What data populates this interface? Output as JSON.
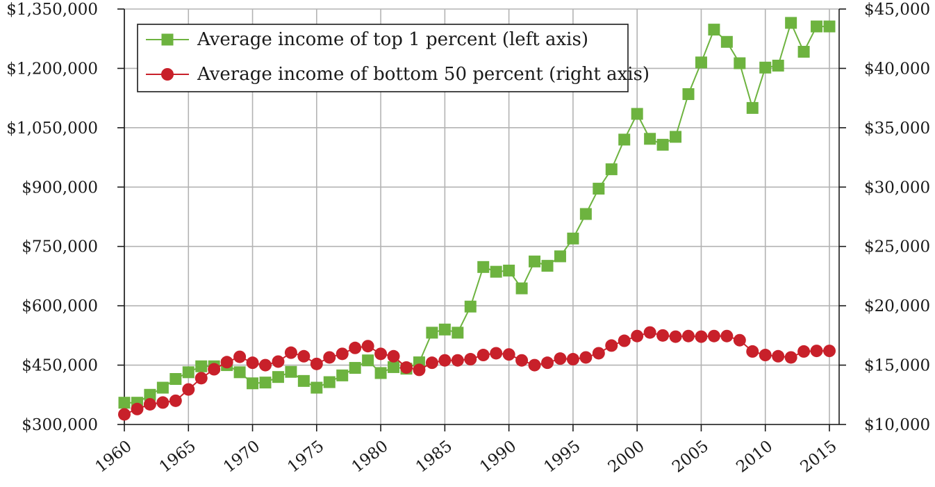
{
  "chart_data": {
    "type": "line",
    "title": "",
    "xlabel": "",
    "ylabel": "",
    "xlim": [
      1960,
      2015
    ],
    "x_ticks": [
      1960,
      1965,
      1970,
      1975,
      1980,
      1985,
      1990,
      1995,
      2000,
      2005,
      2010,
      2015
    ],
    "x_tick_labels": [
      "1960",
      "1965",
      "1970",
      "1975",
      "1980",
      "1985",
      "1990",
      "1995",
      "2000",
      "2005",
      "2010",
      "2015"
    ],
    "y_left": {
      "range": [
        300000,
        1350000
      ],
      "ticks": [
        300000,
        450000,
        600000,
        750000,
        900000,
        1050000,
        1200000,
        1350000
      ],
      "tick_labels": [
        "$300,000",
        "$450,000",
        "$600,000",
        "$750,000",
        "$900,000",
        "$1,050,000",
        "$1,200,000",
        "$1,350,000"
      ]
    },
    "y_right": {
      "range": [
        10000,
        45000
      ],
      "ticks": [
        10000,
        15000,
        20000,
        25000,
        30000,
        35000,
        40000,
        45000
      ],
      "tick_labels": [
        "$10,000",
        "$15,000",
        "$20,000",
        "$25,000",
        "$30,000",
        "$35,000",
        "$40,000",
        "$45,000"
      ]
    },
    "grid": true,
    "legend_position": "top-left",
    "x": [
      1960,
      1961,
      1962,
      1963,
      1964,
      1965,
      1966,
      1967,
      1968,
      1969,
      1970,
      1971,
      1972,
      1973,
      1974,
      1975,
      1976,
      1977,
      1978,
      1979,
      1980,
      1981,
      1982,
      1983,
      1984,
      1985,
      1986,
      1987,
      1988,
      1989,
      1990,
      1991,
      1992,
      1993,
      1994,
      1995,
      1996,
      1997,
      1998,
      1999,
      2000,
      2001,
      2002,
      2003,
      2004,
      2005,
      2006,
      2007,
      2008,
      2009,
      2010,
      2011,
      2012,
      2013,
      2014,
      2015
    ],
    "series": [
      {
        "name": "Average income of top 1 percent (left axis)",
        "axis": "left",
        "color": "#6db33f",
        "marker": "square",
        "values": [
          355000,
          355000,
          375000,
          393000,
          415000,
          432000,
          447000,
          447000,
          450000,
          432000,
          404000,
          406000,
          420000,
          433000,
          410000,
          393000,
          407000,
          424000,
          443000,
          462000,
          430000,
          445000,
          441000,
          457000,
          532000,
          540000,
          532000,
          598000,
          698000,
          686000,
          689000,
          644000,
          712000,
          701000,
          725000,
          770000,
          832000,
          896000,
          945000,
          1020000,
          1085000,
          1022000,
          1007000,
          1027000,
          1135000,
          1215000,
          1298000,
          1267000,
          1213000,
          1100000,
          1202000,
          1207000,
          1315000,
          1242000,
          1306000,
          1306000
        ]
      },
      {
        "name": "Average income of bottom 50 percent (right axis)",
        "axis": "right",
        "color": "#c8202a",
        "marker": "circle",
        "values": [
          10850,
          11300,
          11700,
          11850,
          12000,
          12950,
          13900,
          14650,
          15250,
          15700,
          15200,
          15000,
          15300,
          16050,
          15750,
          15100,
          15650,
          15950,
          16450,
          16600,
          15950,
          15750,
          14800,
          14600,
          15200,
          15400,
          15400,
          15500,
          15850,
          16000,
          15900,
          15400,
          15000,
          15200,
          15550,
          15500,
          15650,
          16000,
          16650,
          17050,
          17450,
          17750,
          17500,
          17400,
          17450,
          17400,
          17450,
          17450,
          17100,
          16150,
          15850,
          15750,
          15650,
          16150,
          16200,
          16200
        ]
      }
    ]
  }
}
